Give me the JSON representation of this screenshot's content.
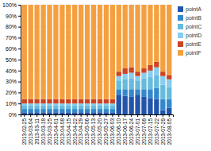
{
  "chart_data": {
    "type": "bar",
    "stacked": true,
    "grid": true,
    "legend": "right",
    "categories": [
      "2013-02-25",
      "2013-03-04",
      "2013-03-11",
      "2013-03-18",
      "2013-03-25",
      "2013-04-01",
      "2013-04-08",
      "2013-04-15",
      "2013-04-22",
      "2013-04-29",
      "2013-05-06",
      "2013-05-13",
      "2013-05-20",
      "2013-05-27",
      "2013-06-03",
      "2013-06-10",
      "2013-06-17",
      "2013-06-24",
      "2013-07-01",
      "2013-07-08",
      "2013-07-15",
      "2013-07-22",
      "2013-07-29",
      "2013-08-05"
    ],
    "series": [
      {
        "name": "pointA",
        "color": "#2255aa",
        "values": [
          2,
          2,
          2,
          2,
          2,
          2,
          2,
          2,
          2,
          2,
          2,
          2,
          2,
          2,
          2,
          18,
          17,
          16,
          18,
          16,
          15,
          14,
          4,
          6
        ]
      },
      {
        "name": "pointB",
        "color": "#3388cc",
        "values": [
          3,
          3,
          3,
          3,
          3,
          3,
          3,
          3,
          3,
          3,
          3,
          3,
          3,
          3,
          3,
          5,
          6,
          7,
          5,
          7,
          8,
          10,
          10,
          8
        ]
      },
      {
        "name": "pointC",
        "color": "#66bbdd",
        "values": [
          3,
          3,
          3,
          3,
          3,
          3,
          3,
          3,
          3,
          3,
          3,
          3,
          3,
          3,
          3,
          8,
          9,
          10,
          8,
          10,
          11,
          12,
          13,
          11
        ]
      },
      {
        "name": "pointD",
        "color": "#88ccee",
        "values": [
          2,
          2,
          2,
          2,
          2,
          2,
          2,
          2,
          2,
          2,
          2,
          2,
          2,
          2,
          2,
          4,
          5,
          5,
          4,
          5,
          6,
          7,
          8,
          7
        ]
      },
      {
        "name": "pointE",
        "color": "#cc4422",
        "values": [
          4,
          4,
          4,
          4,
          4,
          4,
          4,
          4,
          4,
          4,
          4,
          4,
          4,
          4,
          4,
          4,
          5,
          5,
          4,
          4,
          5,
          5,
          4,
          4
        ]
      },
      {
        "name": "pointF",
        "color": "#f5a040",
        "values": [
          86,
          86,
          86,
          86,
          86,
          86,
          86,
          86,
          86,
          86,
          86,
          86,
          86,
          86,
          86,
          61,
          58,
          57,
          61,
          58,
          55,
          52,
          61,
          64
        ]
      }
    ],
    "ylim": [
      0,
      100
    ],
    "yticks": [
      {
        "value": 0,
        "label": "0%"
      },
      {
        "value": 10,
        "label": "10%"
      },
      {
        "value": 20,
        "label": "20%"
      },
      {
        "value": 30,
        "label": "30%"
      },
      {
        "value": 40,
        "label": "40%"
      },
      {
        "value": 50,
        "label": "50%"
      },
      {
        "value": 60,
        "label": "60%"
      },
      {
        "value": 70,
        "label": "70%"
      },
      {
        "value": 80,
        "label": "80%"
      },
      {
        "value": 90,
        "label": "90%"
      },
      {
        "value": 100,
        "label": "100%"
      }
    ]
  }
}
